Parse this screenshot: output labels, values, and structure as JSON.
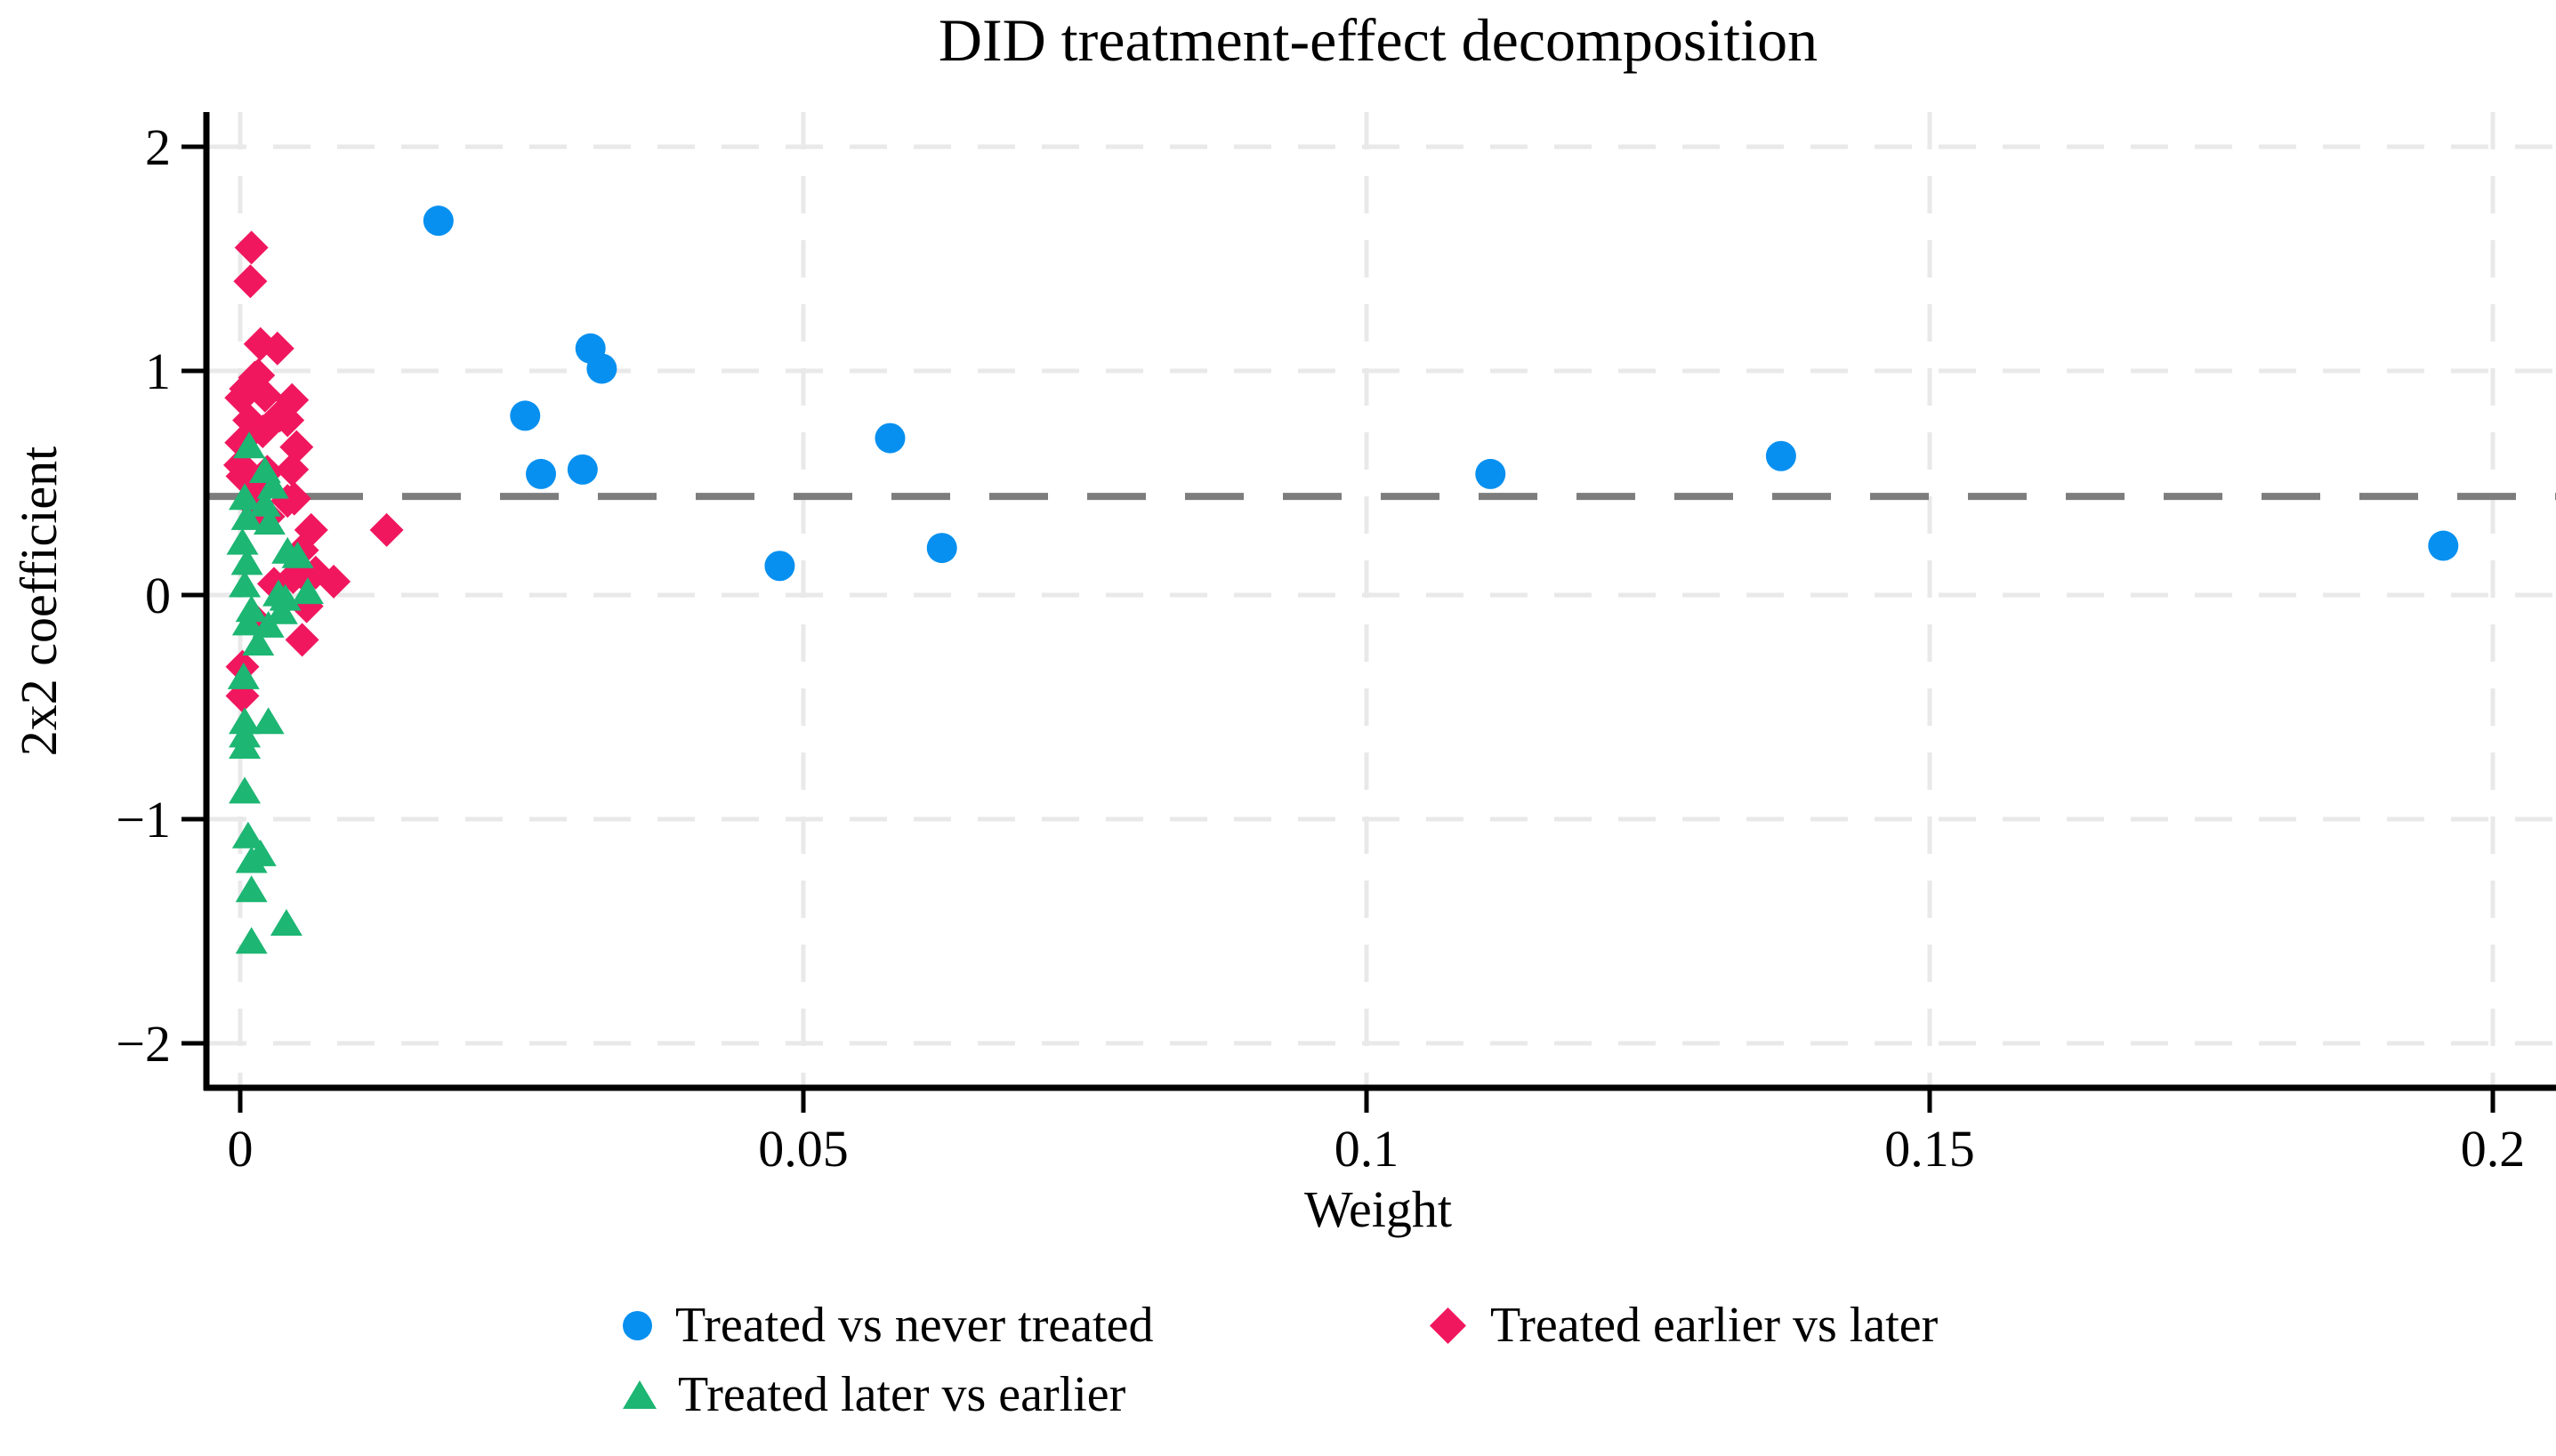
{
  "page": {
    "background": "#ffffff"
  },
  "chart_data": {
    "type": "scatter",
    "title": "DID treatment-effect decomposition",
    "xlabel": "Weight",
    "ylabel": "2x2 coefficient",
    "xlim": [
      -0.003,
      0.2056
    ],
    "ylim": [
      -2.34,
      2.32
    ],
    "grid": true,
    "grid_color": "#e9e9e9",
    "axis_color": "#000000",
    "x_ticks": [
      {
        "value": 0,
        "label": "0"
      },
      {
        "value": 0.05,
        "label": "0.05"
      },
      {
        "value": 0.1,
        "label": "0.1"
      },
      {
        "value": 0.15,
        "label": "0.15"
      },
      {
        "value": 0.2,
        "label": "0.2"
      }
    ],
    "y_ticks": [
      {
        "value": 2,
        "label": "2"
      },
      {
        "value": 1,
        "label": "1"
      },
      {
        "value": 0,
        "label": "0"
      },
      {
        "value": -1,
        "label": "−1"
      },
      {
        "value": -2,
        "label": "−2"
      }
    ],
    "reference_line": {
      "y": 0.44,
      "color": "#7d7d7d",
      "style": "dashed"
    },
    "legend_position": "bottom",
    "series": [
      {
        "name": "Treated vs never treated",
        "marker": "circle",
        "color": "#0790f0",
        "points": [
          [
            0.0176,
            1.67
          ],
          [
            0.0253,
            0.8
          ],
          [
            0.0267,
            0.54
          ],
          [
            0.0304,
            0.56
          ],
          [
            0.0311,
            1.1
          ],
          [
            0.0321,
            1.01
          ],
          [
            0.0479,
            0.13
          ],
          [
            0.0577,
            0.7
          ],
          [
            0.0623,
            0.21
          ],
          [
            0.111,
            0.54
          ],
          [
            0.1368,
            0.62
          ],
          [
            0.1956,
            0.22
          ]
        ]
      },
      {
        "name": "Treated earlier vs later",
        "marker": "diamond",
        "color": "#f0175f",
        "points": [
          [
            0.001,
            1.55
          ],
          [
            0.0009,
            1.4
          ],
          [
            0.0018,
            1.12
          ],
          [
            0.0033,
            1.1
          ],
          [
            0.0016,
            0.98
          ],
          [
            0.0013,
            0.97
          ],
          [
            0.0005,
            0.92
          ],
          [
            0.0022,
            0.89
          ],
          [
            0.0001,
            0.88
          ],
          [
            0.0046,
            0.87
          ],
          [
            0.0042,
            0.78
          ],
          [
            0.0008,
            0.78
          ],
          [
            0.0035,
            0.8
          ],
          [
            0.002,
            0.73
          ],
          [
            0.0001,
            0.68
          ],
          [
            0.005,
            0.66
          ],
          [
            0.0,
            0.58
          ],
          [
            0.0046,
            0.56
          ],
          [
            0.0024,
            0.55
          ],
          [
            0.0002,
            0.53
          ],
          [
            0.0015,
            0.47
          ],
          [
            0.0042,
            0.42
          ],
          [
            0.0048,
            0.43
          ],
          [
            0.0012,
            0.4
          ],
          [
            0.0025,
            0.35
          ],
          [
            0.0063,
            0.29
          ],
          [
            0.013,
            0.29
          ],
          [
            0.0055,
            0.2
          ],
          [
            0.0054,
            0.1
          ],
          [
            0.0067,
            0.1
          ],
          [
            0.0047,
            0.08
          ],
          [
            0.0083,
            0.06
          ],
          [
            0.003,
            0.05
          ],
          [
            0.0059,
            -0.05
          ],
          [
            0.0015,
            -0.12
          ],
          [
            0.0055,
            -0.2
          ],
          [
            0.0002,
            -0.32
          ],
          [
            0.0002,
            -0.45
          ]
        ]
      },
      {
        "name": "Treated later vs earlier",
        "marker": "triangle",
        "color": "#1db673",
        "points": [
          [
            0.0008,
            0.66
          ],
          [
            0.0022,
            0.55
          ],
          [
            0.0029,
            0.48
          ],
          [
            0.0004,
            0.43
          ],
          [
            0.0022,
            0.4
          ],
          [
            0.0006,
            0.34
          ],
          [
            0.0026,
            0.32
          ],
          [
            0.0002,
            0.23
          ],
          [
            0.0042,
            0.19
          ],
          [
            0.0051,
            0.17
          ],
          [
            0.0006,
            0.14
          ],
          [
            0.0004,
            0.04
          ],
          [
            0.0034,
            0.0
          ],
          [
            0.006,
            0.01
          ],
          [
            0.004,
            -0.02
          ],
          [
            0.001,
            -0.07
          ],
          [
            0.0037,
            -0.08
          ],
          [
            0.0007,
            -0.13
          ],
          [
            0.0025,
            -0.14
          ],
          [
            0.0016,
            -0.22
          ],
          [
            0.0003,
            -0.37
          ],
          [
            0.0004,
            -0.57
          ],
          [
            0.0025,
            -0.57
          ],
          [
            0.0004,
            -0.63
          ],
          [
            0.0004,
            -0.68
          ],
          [
            0.0004,
            -0.88
          ],
          [
            0.0007,
            -1.08
          ],
          [
            0.0018,
            -1.16
          ],
          [
            0.001,
            -1.19
          ],
          [
            0.001,
            -1.32
          ],
          [
            0.0041,
            -1.47
          ],
          [
            0.001,
            -1.55
          ]
        ]
      }
    ]
  }
}
